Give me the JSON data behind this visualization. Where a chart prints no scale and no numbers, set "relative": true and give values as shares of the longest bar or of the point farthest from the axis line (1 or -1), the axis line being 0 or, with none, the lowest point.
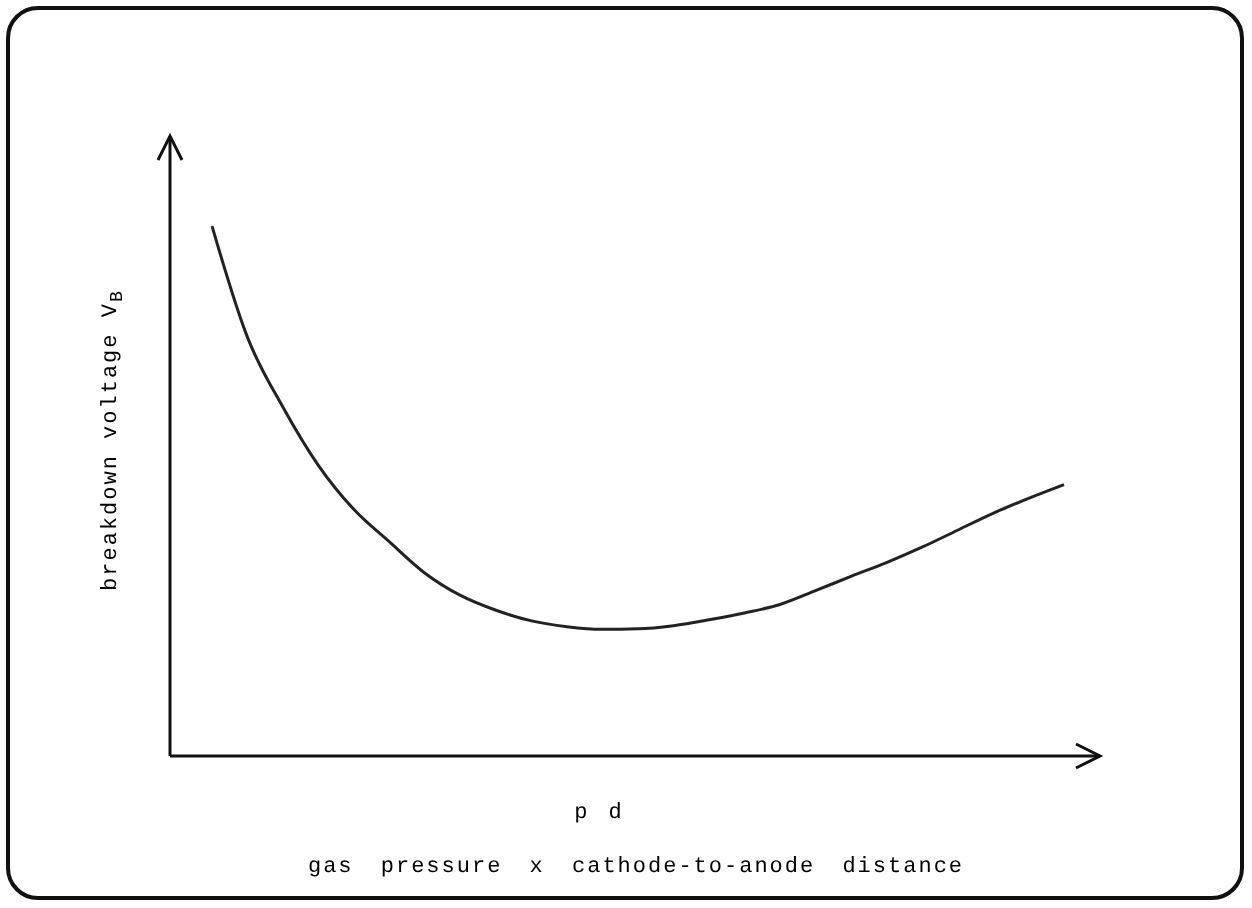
{
  "chart_data": {
    "type": "line",
    "relative": true,
    "xlabel": "p d",
    "ylabel": "breakdown voltage V$_{B}$",
    "annotations": [
      "gas pressure x cathode-to-anode distance"
    ],
    "categories": [
      null,
      null,
      null,
      null,
      null,
      null,
      null,
      null,
      null,
      null,
      null,
      null,
      null,
      null,
      null,
      null,
      null,
      null,
      null,
      null,
      null,
      null,
      null,
      null,
      null
    ],
    "color": "#222222",
    "values": [
      1.0,
      0.79,
      0.658,
      0.548,
      0.465,
      0.404,
      0.345,
      0.303,
      0.275,
      0.255,
      0.244,
      0.239,
      0.24,
      0.246,
      0.257,
      0.27,
      0.286,
      0.312,
      0.339,
      0.365,
      0.394,
      0.426,
      0.458,
      0.486,
      0.512
    ]
  }
}
